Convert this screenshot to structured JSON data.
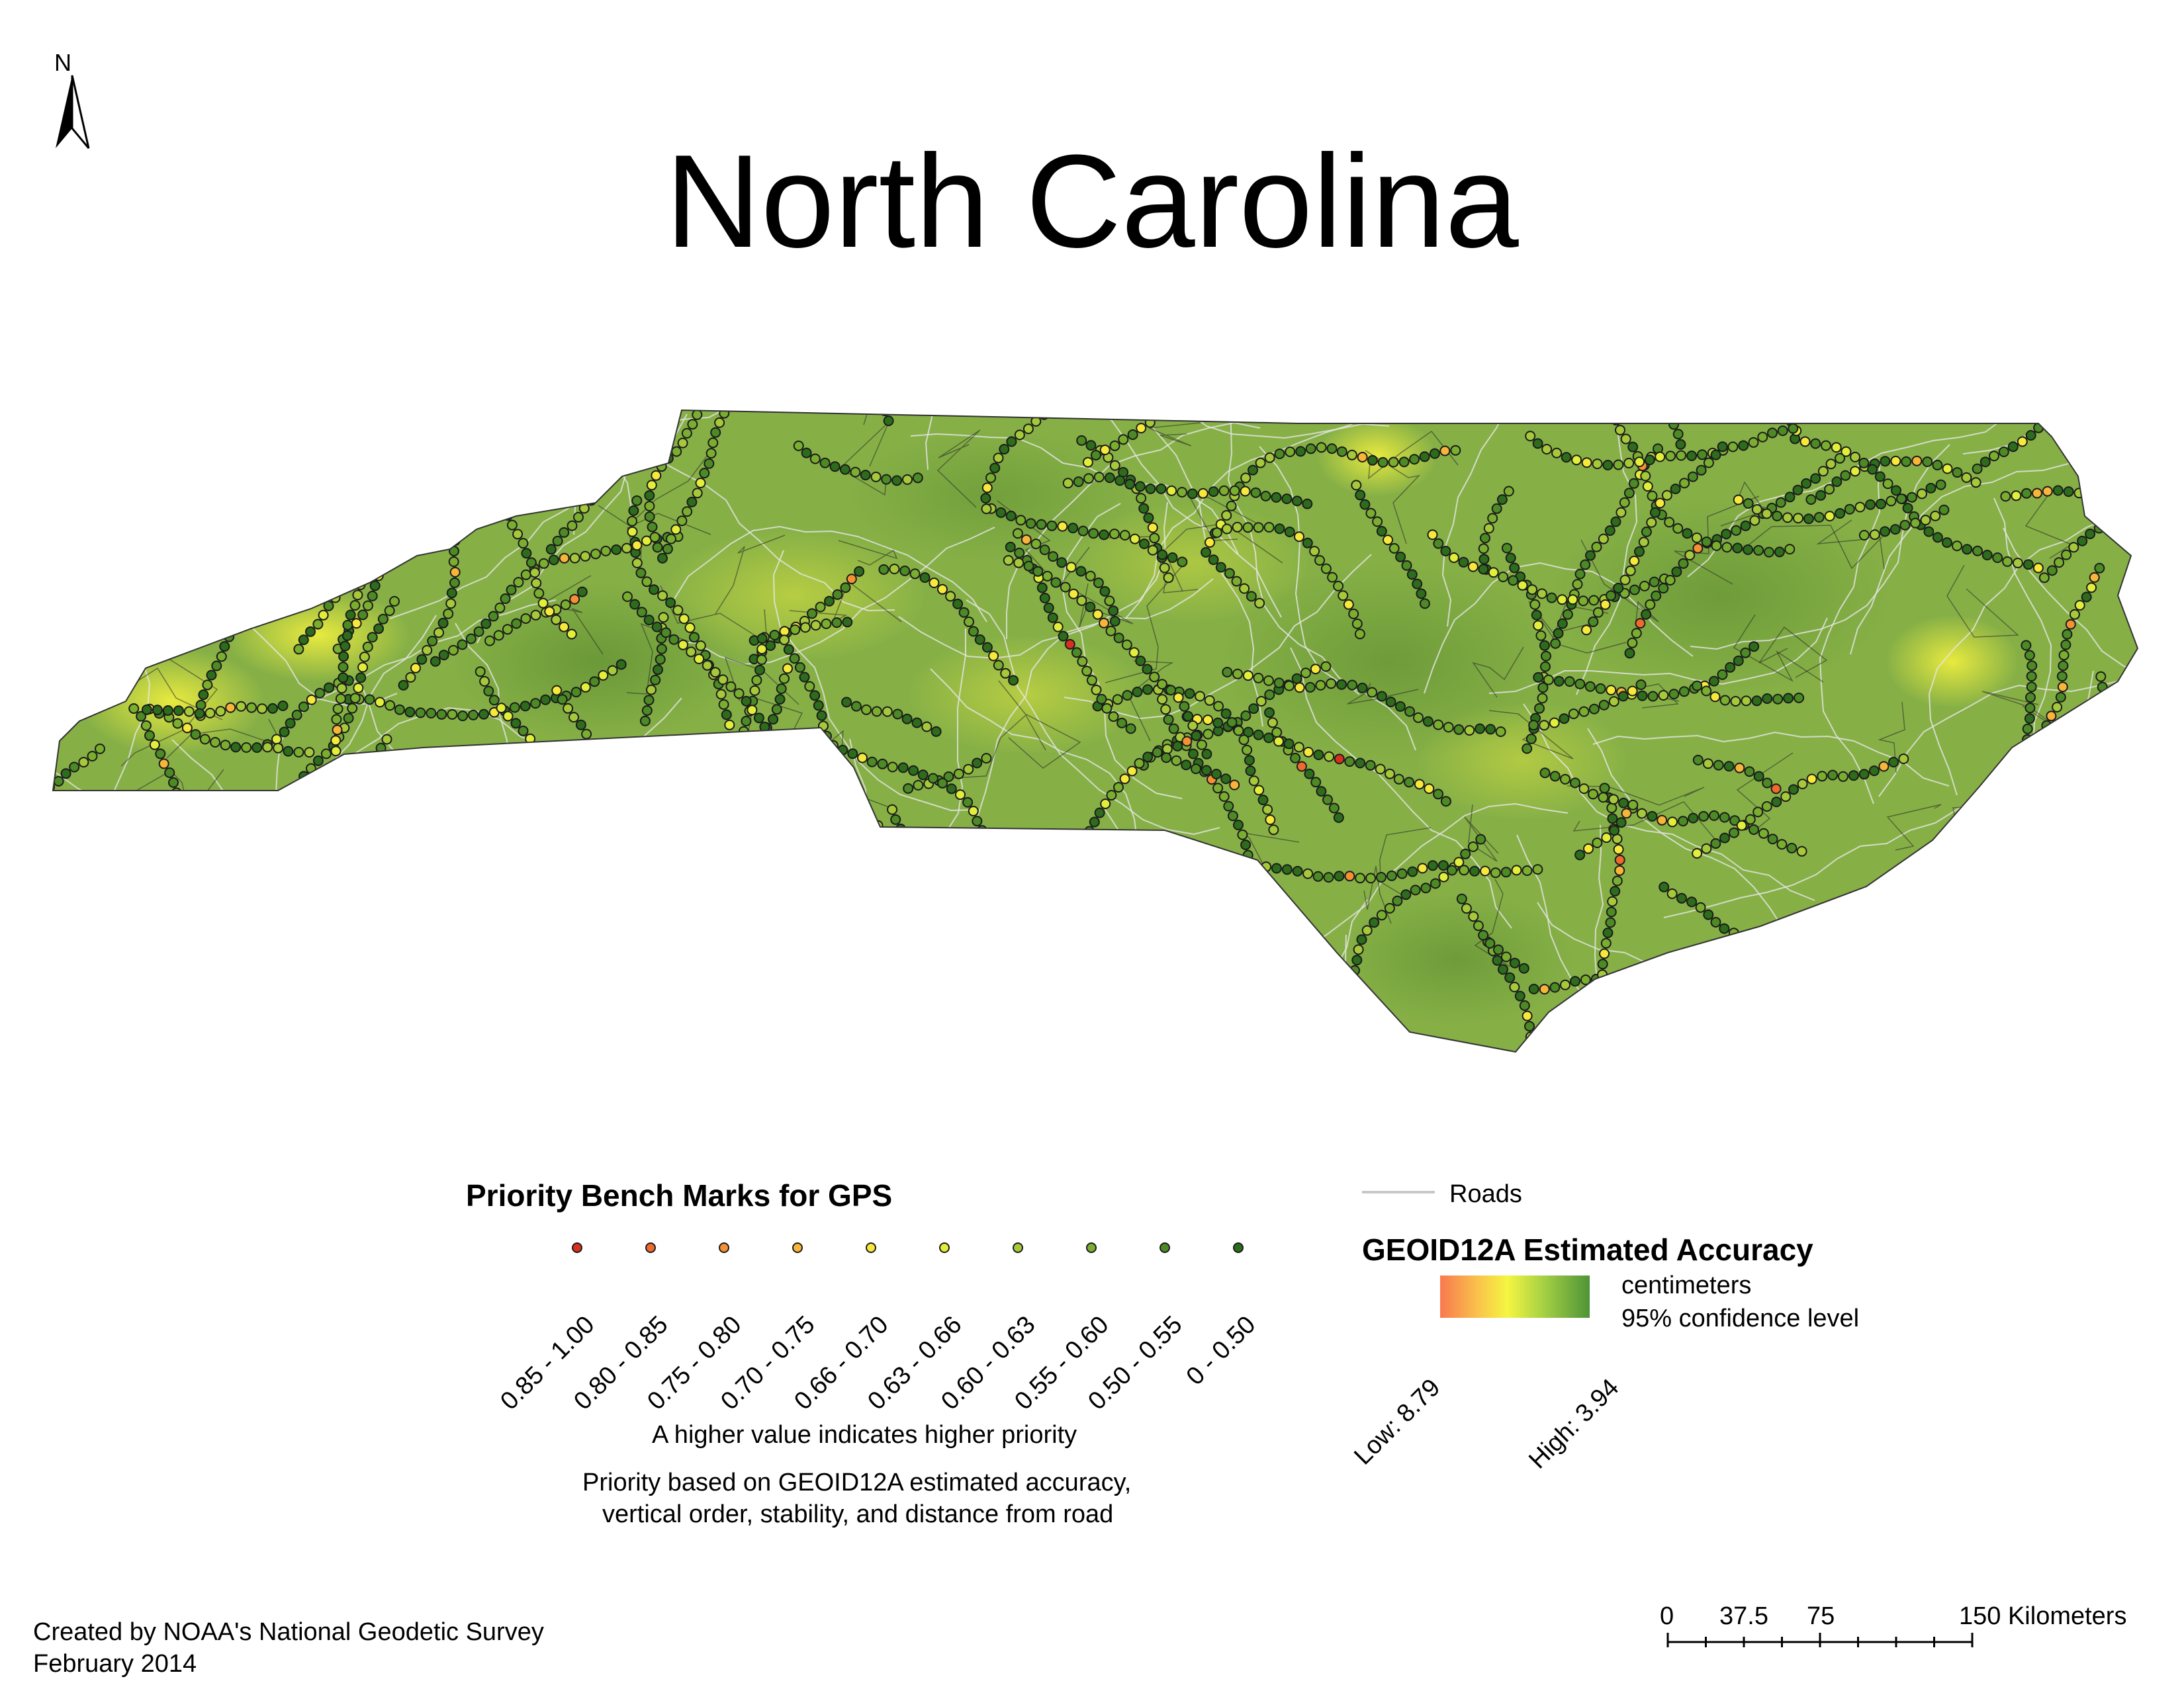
{
  "title": "North Carolina",
  "north_arrow": {
    "label": "N",
    "icon": "north-arrow-icon"
  },
  "priority_legend": {
    "title": "Priority Bench Marks for GPS",
    "classes": [
      {
        "label": "0.85 - 1.00",
        "color": "#d7301f"
      },
      {
        "label": "0.80 - 0.85",
        "color": "#ef6a2e"
      },
      {
        "label": "0.75 - 0.80",
        "color": "#f59035"
      },
      {
        "label": "0.70 - 0.75",
        "color": "#f9b53a"
      },
      {
        "label": "0.66 - 0.70",
        "color": "#f7e93c"
      },
      {
        "label": "0.63 - 0.66",
        "color": "#e2ef3a"
      },
      {
        "label": "0.60 - 0.63",
        "color": "#a6c93a"
      },
      {
        "label": "0.55 - 0.60",
        "color": "#7aae2f"
      },
      {
        "label": "0.50 - 0.55",
        "color": "#4c8a25"
      },
      {
        "label": "0 - 0.50",
        "color": "#2d6c1c"
      }
    ],
    "note_1": "A higher value indicates higher priority",
    "note_2_line1": "Priority based on GEOID12A estimated accuracy,",
    "note_2_line2": "vertical order, stability, and distance from road"
  },
  "roads_legend": {
    "label": "Roads",
    "color": "#c8c8c8"
  },
  "accuracy_legend": {
    "title": "GEOID12A Estimated Accuracy",
    "unit_line1": "centimeters",
    "unit_line2": "95% confidence level",
    "low_label": "Low: 8.79",
    "high_label": "High: 3.94",
    "low_value": 8.79,
    "high_value": 3.94,
    "ramp_colors": [
      "#f8794f",
      "#f5f542",
      "#4e9438"
    ]
  },
  "credits": {
    "line1": "Created by NOAA's National Geodetic Survey",
    "line2": "February 2014"
  },
  "scale_bar": {
    "tick_0": "0",
    "tick_1": "37.5",
    "tick_2": "75",
    "tick_3": "150 Kilometers"
  },
  "colors": {
    "land_base": "#8ab44a",
    "land_light": "#c2d648",
    "county_border": "#2a2a2a",
    "road": "#e6e6e6",
    "water_outline": "#333333"
  }
}
